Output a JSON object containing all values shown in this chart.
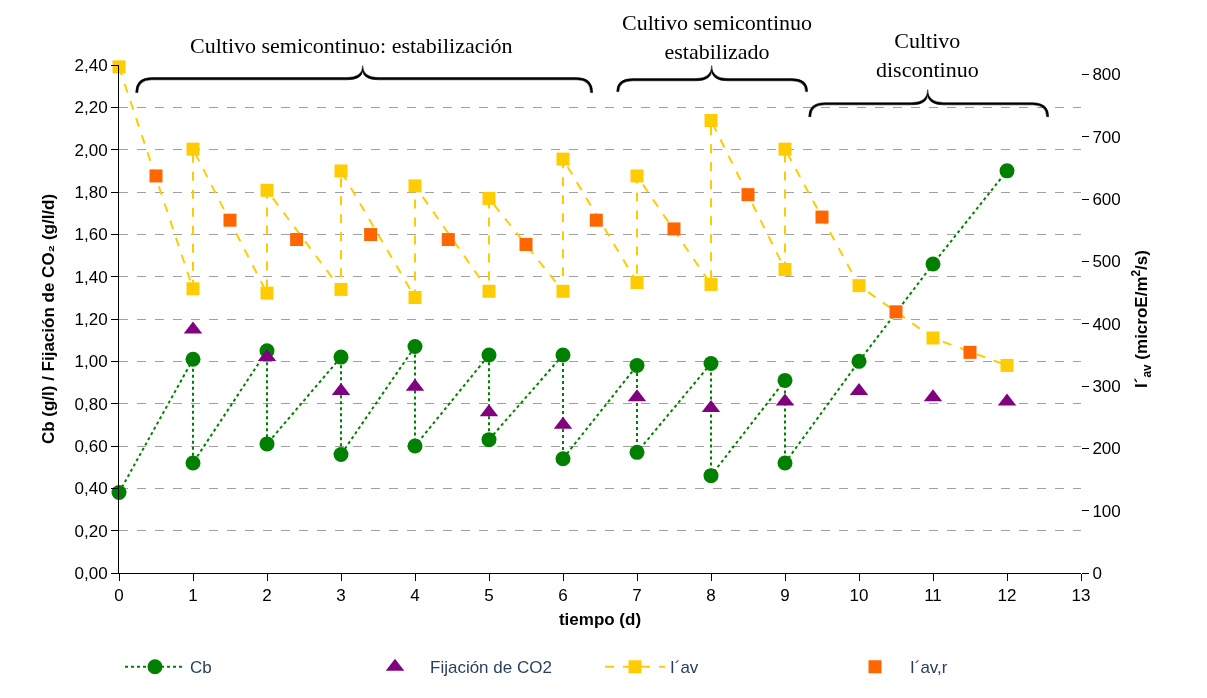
{
  "chart_data": {
    "type": "line",
    "xlabel": "tiempo (d)",
    "ylabel": "Cb (g/l) / Fijación de CO₂ (g/l/d)",
    "y2label": "I´$_{av}$ (microE/m$^{2}$/s)",
    "annotations": [
      "Cultivo semicontinuo: estabilización",
      "Cultivo semicontinuo\nestabilizado",
      "Cultivo\ndiscontinuo"
    ],
    "xlim": [
      0,
      13
    ],
    "xticks": [
      0,
      1,
      2,
      3,
      4,
      5,
      6,
      7,
      8,
      9,
      10,
      11,
      12,
      13
    ],
    "ylim": [
      0,
      2.4
    ],
    "yticks": [
      {
        "value": 0,
        "label": "0,00"
      },
      {
        "value": 0.2,
        "label": "0,20"
      },
      {
        "value": 0.4,
        "label": "0,40"
      },
      {
        "value": 0.6,
        "label": "0,60"
      },
      {
        "value": 0.8,
        "label": "0,80"
      },
      {
        "value": 1.0,
        "label": "1,00"
      },
      {
        "value": 1.2,
        "label": "1,20"
      },
      {
        "value": 1.4,
        "label": "1,40"
      },
      {
        "value": 1.6,
        "label": "1,60"
      },
      {
        "value": 1.8,
        "label": "1,80"
      },
      {
        "value": 2.0,
        "label": "2,00"
      },
      {
        "value": 2.2,
        "label": "2,20"
      },
      {
        "value": 2.4,
        "label": "2,40"
      }
    ],
    "y2lim": [
      0,
      815
    ],
    "y2ticks": [
      0,
      100,
      200,
      300,
      400,
      500,
      600,
      700,
      800
    ],
    "grid": "y",
    "legend": "bottom",
    "series": [
      {
        "name": "Cb",
        "color": "#008000",
        "marker": "circle",
        "line_style": "dotted",
        "x": [
          0,
          1,
          1,
          2,
          2,
          3,
          3,
          4,
          4,
          5,
          5,
          6,
          6,
          7,
          7,
          8,
          8,
          9,
          9,
          10,
          11,
          12
        ],
        "values": [
          0.38,
          1.01,
          0.52,
          1.05,
          0.61,
          1.02,
          0.56,
          1.07,
          0.6,
          1.03,
          0.63,
          1.03,
          0.54,
          0.98,
          0.57,
          0.99,
          0.46,
          0.91,
          0.52,
          1.0,
          1.46,
          1.9
        ]
      },
      {
        "name": "Fijación de CO2",
        "type": "scatter",
        "color": "#800080",
        "marker": "triangle",
        "x": [
          1,
          2,
          3,
          4,
          5,
          6,
          7,
          8,
          9
        ],
        "values": [
          1.15,
          1.02,
          0.86,
          0.88,
          0.76,
          0.7,
          0.83,
          0.78,
          0.81
        ]
      },
      {
        "type": "scatter",
        "color": "#800080",
        "marker": "triangle",
        "x": [
          10,
          11,
          12
        ],
        "values": [
          0.86,
          0.83,
          0.81
        ]
      },
      {
        "name": "I´av",
        "axis": "y2",
        "color": "#ffcc00",
        "marker": "square",
        "line_style": "dashed",
        "x": [
          0,
          1,
          1,
          2,
          2,
          3,
          3,
          4,
          4,
          5,
          5,
          6,
          6,
          7,
          7,
          8,
          8,
          9,
          9,
          10,
          11,
          12
        ],
        "values": [
          812,
          456,
          680,
          449,
          614,
          455,
          645,
          442,
          621,
          452,
          601,
          452,
          664,
          466,
          637,
          463,
          726,
          487,
          680,
          461,
          377,
          333
        ]
      },
      {
        "name": "I´av,r",
        "type": "scatter",
        "axis": "y2",
        "color": "#ff6600",
        "marker": "square",
        "x": [
          0.5,
          1.5,
          2.4,
          3.4,
          4.45,
          5.5,
          6.45,
          7.5,
          8.5,
          9.5,
          10.5,
          11.5
        ],
        "values": [
          637,
          566,
          535,
          543,
          535,
          527,
          566,
          552,
          607,
          571,
          419,
          354
        ]
      }
    ]
  }
}
